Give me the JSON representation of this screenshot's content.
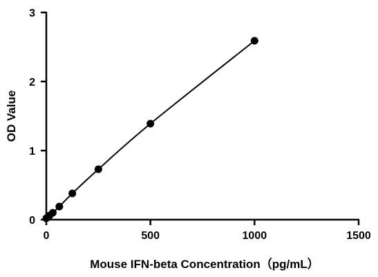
{
  "chart_data": {
    "type": "scatter",
    "title": "",
    "xlabel": "Mouse IFN-beta Concentration（pg/mL）",
    "ylabel": "OD Value",
    "xlim": [
      0,
      1500
    ],
    "ylim": [
      0,
      3
    ],
    "xticks": [
      0,
      500,
      1000,
      1500
    ],
    "yticks": [
      0,
      1,
      2,
      3
    ],
    "xtick_labels": [
      "0",
      "500",
      "1000",
      "1500"
    ],
    "ytick_labels": [
      "0",
      "1",
      "2",
      "3"
    ],
    "grid": false,
    "legend": "none",
    "series": [
      {
        "x": [
          0,
          15.6,
          31.25,
          62.5,
          125,
          250,
          500,
          1000
        ],
        "y": [
          0.02,
          0.06,
          0.1,
          0.19,
          0.38,
          0.73,
          1.39,
          2.59
        ],
        "marker": "filled-circle",
        "fit_line": true,
        "color": "#000000"
      }
    ]
  }
}
